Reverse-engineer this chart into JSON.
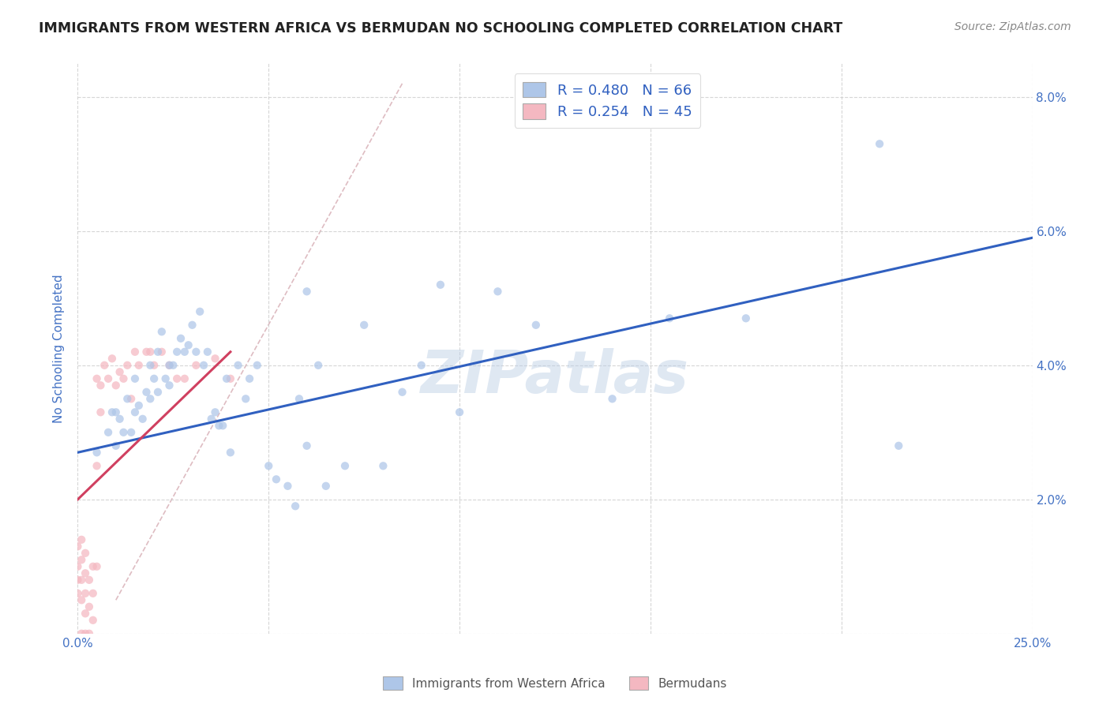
{
  "title": "IMMIGRANTS FROM WESTERN AFRICA VS BERMUDAN NO SCHOOLING COMPLETED CORRELATION CHART",
  "source": "Source: ZipAtlas.com",
  "ylabel": "No Schooling Completed",
  "xlim": [
    0.0,
    0.25
  ],
  "ylim": [
    0.0,
    0.085
  ],
  "x_ticks": [
    0.0,
    0.05,
    0.1,
    0.15,
    0.2,
    0.25
  ],
  "y_ticks": [
    0.0,
    0.02,
    0.04,
    0.06,
    0.08
  ],
  "x_tick_labels": [
    "0.0%",
    "",
    "",
    "",
    "",
    "25.0%"
  ],
  "y_tick_labels": [
    "",
    "2.0%",
    "4.0%",
    "6.0%",
    "8.0%"
  ],
  "legend_label_blue": "R = 0.480   N = 66",
  "legend_label_pink": "R = 0.254   N = 45",
  "blue_scatter_x": [
    0.005,
    0.008,
    0.009,
    0.01,
    0.01,
    0.011,
    0.012,
    0.013,
    0.014,
    0.015,
    0.015,
    0.016,
    0.017,
    0.018,
    0.019,
    0.019,
    0.02,
    0.021,
    0.021,
    0.022,
    0.023,
    0.024,
    0.024,
    0.025,
    0.026,
    0.027,
    0.028,
    0.029,
    0.03,
    0.031,
    0.032,
    0.033,
    0.034,
    0.035,
    0.036,
    0.037,
    0.038,
    0.039,
    0.04,
    0.042,
    0.044,
    0.045,
    0.047,
    0.05,
    0.052,
    0.055,
    0.057,
    0.058,
    0.06,
    0.063,
    0.065,
    0.07,
    0.075,
    0.08,
    0.085,
    0.09,
    0.095,
    0.1,
    0.11,
    0.12,
    0.14,
    0.155,
    0.175,
    0.21,
    0.215,
    0.06
  ],
  "blue_scatter_y": [
    0.027,
    0.03,
    0.033,
    0.028,
    0.033,
    0.032,
    0.03,
    0.035,
    0.03,
    0.038,
    0.033,
    0.034,
    0.032,
    0.036,
    0.035,
    0.04,
    0.038,
    0.042,
    0.036,
    0.045,
    0.038,
    0.04,
    0.037,
    0.04,
    0.042,
    0.044,
    0.042,
    0.043,
    0.046,
    0.042,
    0.048,
    0.04,
    0.042,
    0.032,
    0.033,
    0.031,
    0.031,
    0.038,
    0.027,
    0.04,
    0.035,
    0.038,
    0.04,
    0.025,
    0.023,
    0.022,
    0.019,
    0.035,
    0.028,
    0.04,
    0.022,
    0.025,
    0.046,
    0.025,
    0.036,
    0.04,
    0.052,
    0.033,
    0.051,
    0.046,
    0.035,
    0.047,
    0.047,
    0.073,
    0.028,
    0.051
  ],
  "pink_scatter_x": [
    0.0,
    0.0,
    0.0,
    0.0,
    0.001,
    0.001,
    0.001,
    0.001,
    0.001,
    0.002,
    0.002,
    0.002,
    0.002,
    0.002,
    0.003,
    0.003,
    0.003,
    0.004,
    0.004,
    0.004,
    0.005,
    0.005,
    0.005,
    0.006,
    0.006,
    0.007,
    0.008,
    0.009,
    0.01,
    0.011,
    0.012,
    0.013,
    0.014,
    0.015,
    0.016,
    0.018,
    0.019,
    0.02,
    0.022,
    0.024,
    0.026,
    0.028,
    0.031,
    0.036,
    0.04
  ],
  "pink_scatter_y": [
    0.006,
    0.008,
    0.01,
    0.013,
    0.0,
    0.005,
    0.008,
    0.011,
    0.014,
    0.0,
    0.003,
    0.006,
    0.009,
    0.012,
    0.0,
    0.004,
    0.008,
    0.002,
    0.006,
    0.01,
    0.01,
    0.025,
    0.038,
    0.033,
    0.037,
    0.04,
    0.038,
    0.041,
    0.037,
    0.039,
    0.038,
    0.04,
    0.035,
    0.042,
    0.04,
    0.042,
    0.042,
    0.04,
    0.042,
    0.04,
    0.038,
    0.038,
    0.04,
    0.041,
    0.038
  ],
  "blue_line_x": [
    0.0,
    0.25
  ],
  "blue_line_y": [
    0.027,
    0.059
  ],
  "pink_line_x": [
    0.0,
    0.04
  ],
  "pink_line_y": [
    0.02,
    0.042
  ],
  "diagonal_line_x": [
    0.01,
    0.085
  ],
  "diagonal_line_y": [
    0.005,
    0.082
  ],
  "watermark": "ZIPatlas",
  "scatter_size": 55,
  "scatter_alpha": 0.72,
  "blue_color": "#aec6e8",
  "pink_color": "#f4b8c1",
  "blue_line_color": "#3060c0",
  "pink_line_color": "#d04060",
  "diag_line_color": "#d0a0a8",
  "grid_color": "#cccccc",
  "background_color": "#ffffff",
  "title_color": "#222222",
  "source_color": "#888888",
  "axis_label_color": "#4472c4",
  "tick_color": "#4472c4"
}
